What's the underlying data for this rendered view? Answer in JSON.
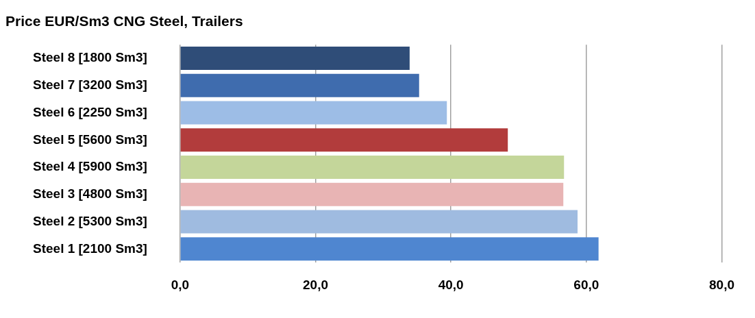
{
  "chart_data": {
    "type": "bar",
    "orientation": "horizontal",
    "title": "Price EUR/Sm3 CNG Steel, Trailers",
    "categories": [
      "Steel 8 [1800 Sm3]",
      "Steel 7 [3200 Sm3]",
      "Steel 6 [2250 Sm3]",
      "Steel 5 [5600 Sm3]",
      "Steel 4 [5900 Sm3]",
      "Steel 3 [4800 Sm3]",
      "Steel 2 [5300 Sm3]",
      "Steel 1 [2100 Sm3]"
    ],
    "values": [
      33.9,
      35.3,
      39.4,
      48.4,
      56.7,
      56.6,
      58.7,
      61.8
    ],
    "colors": [
      "#2f4d78",
      "#3f6cae",
      "#9dbde6",
      "#b23c3c",
      "#c4d69a",
      "#e8b4b4",
      "#9fbbe0",
      "#4f86d0"
    ],
    "xlim": [
      0,
      80
    ],
    "xticks": [
      {
        "value": 0,
        "label": "0,0"
      },
      {
        "value": 20,
        "label": "20,0"
      },
      {
        "value": 40,
        "label": "40,0"
      },
      {
        "value": 60,
        "label": "60,0"
      },
      {
        "value": 80,
        "label": "80,0"
      }
    ],
    "grid": "x",
    "legend": false
  }
}
